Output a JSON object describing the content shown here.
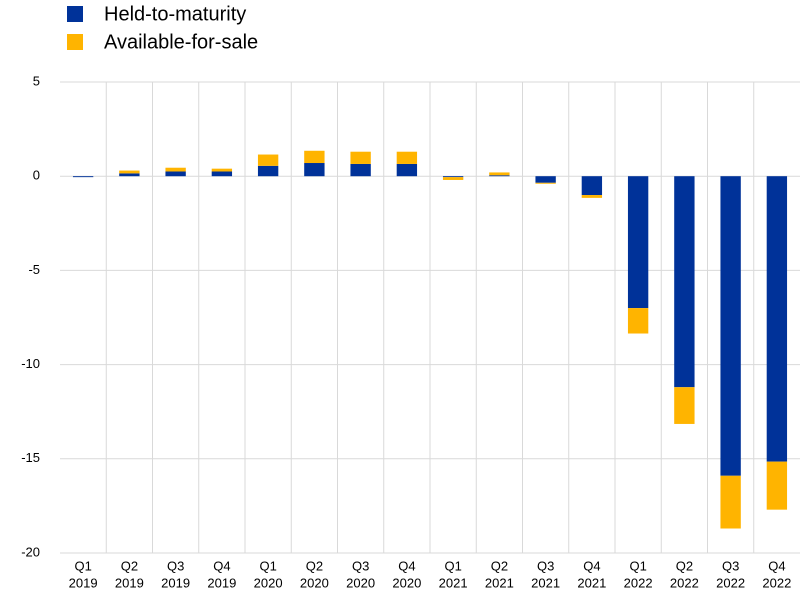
{
  "chart_data": {
    "type": "stacked_bar",
    "categories": [
      [
        "Q1",
        "2019"
      ],
      [
        "Q2",
        "2019"
      ],
      [
        "Q3",
        "2019"
      ],
      [
        "Q4",
        "2019"
      ],
      [
        "Q1",
        "2020"
      ],
      [
        "Q2",
        "2020"
      ],
      [
        "Q3",
        "2020"
      ],
      [
        "Q4",
        "2020"
      ],
      [
        "Q1",
        "2021"
      ],
      [
        "Q2",
        "2021"
      ],
      [
        "Q3",
        "2021"
      ],
      [
        "Q4",
        "2021"
      ],
      [
        "Q1",
        "2022"
      ],
      [
        "Q2",
        "2022"
      ],
      [
        "Q3",
        "2022"
      ],
      [
        "Q4",
        "2022"
      ]
    ],
    "series": [
      {
        "name": "Held-to-maturity",
        "color": "#003299",
        "values": [
          -0.05,
          0.15,
          0.25,
          0.25,
          0.55,
          0.7,
          0.65,
          0.65,
          -0.05,
          0.05,
          -0.35,
          -1.0,
          -7.0,
          -11.2,
          -15.9,
          -15.15
        ]
      },
      {
        "name": "Available-for-sale",
        "color": "#ffb400",
        "values": [
          0,
          0.15,
          0.2,
          0.15,
          0.6,
          0.65,
          0.65,
          0.65,
          -0.15,
          0.15,
          -0.05,
          -0.15,
          -1.35,
          -1.95,
          -2.8,
          -2.55
        ]
      }
    ],
    "ylim": [
      -20,
      5
    ],
    "yticks": [
      -20,
      -15,
      -10,
      -5,
      0,
      5
    ],
    "grid": true
  }
}
